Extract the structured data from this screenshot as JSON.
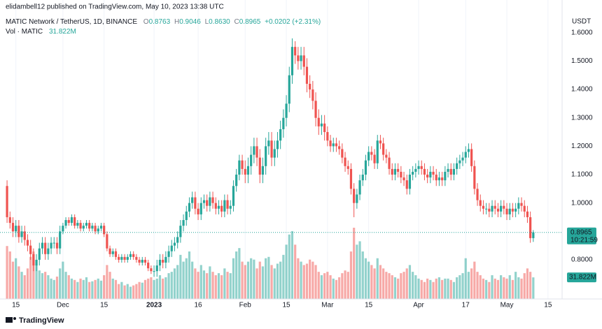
{
  "header": {
    "publisher": "elidambell12 published on TradingView.com, May 10, 2023 13:38 UTC",
    "symbol": "MATIC Network / TetherUS, 1D, BINANCE",
    "ohlc": [
      {
        "key": "O",
        "value": "0.8763"
      },
      {
        "key": "H",
        "value": "0.9046"
      },
      {
        "key": "L",
        "value": "0.8630"
      },
      {
        "key": "C",
        "value": "0.8965"
      }
    ],
    "change": "+0.0202 (+2.31%)",
    "volume_title": "Vol · MATIC"
  },
  "chart_data": {
    "type": "candlestick",
    "currency": "USDT",
    "up_color": "#26a69a",
    "down_color": "#ef5350",
    "grid": true,
    "open": [
      1.06,
      0.95,
      0.93,
      0.9,
      0.92,
      0.88,
      0.9,
      0.87,
      0.85,
      0.82,
      0.78,
      0.8,
      0.84,
      0.86,
      0.82,
      0.84,
      0.86,
      0.86,
      0.84,
      0.9,
      0.92,
      0.94,
      0.93,
      0.95,
      0.92,
      0.93,
      0.91,
      0.92,
      0.93,
      0.91,
      0.92,
      0.9,
      0.91,
      0.92,
      0.89,
      0.84,
      0.82,
      0.83,
      0.81,
      0.8,
      0.81,
      0.8,
      0.81,
      0.82,
      0.81,
      0.8,
      0.79,
      0.8,
      0.79,
      0.77,
      0.76,
      0.76,
      0.78,
      0.8,
      0.79,
      0.81,
      0.83,
      0.85,
      0.86,
      0.88,
      0.92,
      0.94,
      0.97,
      1.0,
      1.02,
      0.98,
      0.96,
      1.0,
      1.01,
      0.99,
      1.02,
      1.0,
      0.98,
      0.99,
      0.97,
      1.01,
      0.98,
      0.99,
      1.06,
      1.1,
      1.15,
      1.12,
      1.1,
      1.13,
      1.17,
      1.2,
      1.16,
      1.1,
      1.13,
      1.2,
      1.22,
      1.16,
      1.19,
      1.22,
      1.26,
      1.3,
      1.35,
      1.45,
      1.55,
      1.52,
      1.5,
      1.52,
      1.48,
      1.42,
      1.4,
      1.36,
      1.3,
      1.27,
      1.28,
      1.25,
      1.22,
      1.2,
      1.21,
      1.2,
      1.19,
      1.16,
      1.13,
      1.12,
      1.05,
      1.0,
      1.03,
      1.08,
      1.1,
      1.15,
      1.18,
      1.17,
      1.14,
      1.22,
      1.21,
      1.17,
      1.16,
      1.12,
      1.1,
      1.12,
      1.11,
      1.09,
      1.08,
      1.05,
      1.1,
      1.11,
      1.12,
      1.13,
      1.12,
      1.1,
      1.09,
      1.11,
      1.1,
      1.08,
      1.09,
      1.08,
      1.11,
      1.12,
      1.1,
      1.12,
      1.14,
      1.15,
      1.16,
      1.18,
      1.19,
      1.13,
      1.05,
      1.01,
      0.99,
      0.98,
      0.98,
      0.97,
      0.99,
      0.98,
      0.97,
      0.99,
      0.98,
      0.96,
      0.98,
      0.97,
      0.98,
      1.0,
      0.99,
      0.97,
      0.95,
      0.8763
    ],
    "high": [
      1.08,
      0.97,
      0.95,
      0.94,
      0.94,
      0.92,
      0.92,
      0.89,
      0.87,
      0.84,
      0.82,
      0.86,
      0.88,
      0.88,
      0.86,
      0.88,
      0.88,
      0.88,
      0.92,
      0.93,
      0.95,
      0.95,
      0.96,
      0.96,
      0.94,
      0.94,
      0.93,
      0.94,
      0.94,
      0.93,
      0.93,
      0.92,
      0.93,
      0.93,
      0.9,
      0.85,
      0.84,
      0.84,
      0.82,
      0.82,
      0.82,
      0.82,
      0.83,
      0.83,
      0.82,
      0.81,
      0.81,
      0.81,
      0.8,
      0.78,
      0.78,
      0.8,
      0.82,
      0.82,
      0.83,
      0.85,
      0.87,
      0.88,
      0.9,
      0.94,
      0.96,
      0.99,
      1.02,
      1.04,
      1.04,
      1.0,
      1.02,
      1.03,
      1.03,
      1.04,
      1.04,
      1.02,
      1.01,
      1.01,
      1.03,
      1.03,
      1.01,
      1.08,
      1.12,
      1.17,
      1.17,
      1.15,
      1.16,
      1.2,
      1.23,
      1.23,
      1.19,
      1.16,
      1.23,
      1.25,
      1.25,
      1.22,
      1.25,
      1.29,
      1.33,
      1.38,
      1.48,
      1.58,
      1.57,
      1.55,
      1.55,
      1.55,
      1.51,
      1.45,
      1.43,
      1.39,
      1.33,
      1.31,
      1.31,
      1.27,
      1.24,
      1.23,
      1.23,
      1.22,
      1.21,
      1.18,
      1.15,
      1.14,
      1.07,
      1.05,
      1.1,
      1.12,
      1.17,
      1.2,
      1.2,
      1.19,
      1.24,
      1.24,
      1.23,
      1.19,
      1.18,
      1.14,
      1.14,
      1.14,
      1.13,
      1.11,
      1.1,
      1.12,
      1.13,
      1.14,
      1.15,
      1.15,
      1.14,
      1.12,
      1.13,
      1.13,
      1.12,
      1.11,
      1.11,
      1.13,
      1.14,
      1.14,
      1.14,
      1.16,
      1.17,
      1.18,
      1.2,
      1.21,
      1.21,
      1.15,
      1.07,
      1.03,
      1.01,
      1.0,
      1.0,
      1.01,
      1.01,
      1.0,
      1.01,
      1.01,
      1.0,
      1.0,
      1.0,
      1.0,
      1.02,
      1.02,
      1.01,
      0.99,
      0.97,
      0.9046
    ],
    "low": [
      0.93,
      0.91,
      0.88,
      0.88,
      0.86,
      0.86,
      0.85,
      0.83,
      0.8,
      0.76,
      0.76,
      0.78,
      0.82,
      0.8,
      0.8,
      0.82,
      0.84,
      0.82,
      0.82,
      0.89,
      0.91,
      0.92,
      0.92,
      0.91,
      0.91,
      0.9,
      0.9,
      0.91,
      0.9,
      0.9,
      0.89,
      0.89,
      0.9,
      0.88,
      0.83,
      0.81,
      0.81,
      0.8,
      0.79,
      0.79,
      0.79,
      0.79,
      0.8,
      0.8,
      0.79,
      0.78,
      0.78,
      0.78,
      0.76,
      0.75,
      0.74,
      0.74,
      0.76,
      0.77,
      0.77,
      0.79,
      0.81,
      0.83,
      0.84,
      0.86,
      0.9,
      0.92,
      0.95,
      0.98,
      0.96,
      0.94,
      0.94,
      0.98,
      0.97,
      0.97,
      0.98,
      0.96,
      0.96,
      0.95,
      0.95,
      0.96,
      0.96,
      0.97,
      1.04,
      1.08,
      1.1,
      1.07,
      1.07,
      1.1,
      1.14,
      1.13,
      1.07,
      1.07,
      1.1,
      1.17,
      1.13,
      1.13,
      1.16,
      1.19,
      1.23,
      1.27,
      1.32,
      1.42,
      1.49,
      1.47,
      1.47,
      1.45,
      1.39,
      1.37,
      1.33,
      1.27,
      1.24,
      1.24,
      1.22,
      1.2,
      1.18,
      1.18,
      1.18,
      1.17,
      1.14,
      1.11,
      1.1,
      1.03,
      0.95,
      0.98,
      1.01,
      1.06,
      1.08,
      1.13,
      1.15,
      1.12,
      1.12,
      1.19,
      1.15,
      1.14,
      1.1,
      1.08,
      1.08,
      1.09,
      1.07,
      1.06,
      1.03,
      1.03,
      1.08,
      1.09,
      1.1,
      1.1,
      1.08,
      1.07,
      1.07,
      1.08,
      1.06,
      1.06,
      1.06,
      1.06,
      1.09,
      1.08,
      1.08,
      1.1,
      1.12,
      1.13,
      1.14,
      1.16,
      1.11,
      1.03,
      0.99,
      0.97,
      0.96,
      0.96,
      0.95,
      0.95,
      0.96,
      0.95,
      0.95,
      0.96,
      0.94,
      0.94,
      0.95,
      0.95,
      0.96,
      0.97,
      0.95,
      0.93,
      0.86,
      0.863
    ],
    "close": [
      0.95,
      0.93,
      0.9,
      0.92,
      0.88,
      0.9,
      0.87,
      0.85,
      0.82,
      0.78,
      0.8,
      0.84,
      0.86,
      0.82,
      0.84,
      0.86,
      0.86,
      0.84,
      0.9,
      0.92,
      0.94,
      0.93,
      0.95,
      0.92,
      0.93,
      0.91,
      0.92,
      0.93,
      0.91,
      0.92,
      0.9,
      0.91,
      0.92,
      0.89,
      0.84,
      0.82,
      0.83,
      0.81,
      0.8,
      0.81,
      0.8,
      0.81,
      0.82,
      0.81,
      0.8,
      0.79,
      0.8,
      0.79,
      0.77,
      0.76,
      0.76,
      0.78,
      0.8,
      0.79,
      0.81,
      0.83,
      0.85,
      0.86,
      0.88,
      0.92,
      0.94,
      0.97,
      1.0,
      1.02,
      0.98,
      0.96,
      1.0,
      1.01,
      0.99,
      1.02,
      1.0,
      0.98,
      0.99,
      0.97,
      1.01,
      0.98,
      0.99,
      1.06,
      1.1,
      1.15,
      1.12,
      1.1,
      1.13,
      1.17,
      1.2,
      1.16,
      1.1,
      1.13,
      1.2,
      1.22,
      1.16,
      1.19,
      1.22,
      1.26,
      1.3,
      1.35,
      1.45,
      1.55,
      1.52,
      1.5,
      1.52,
      1.48,
      1.42,
      1.4,
      1.36,
      1.3,
      1.27,
      1.28,
      1.25,
      1.22,
      1.2,
      1.21,
      1.2,
      1.19,
      1.16,
      1.13,
      1.12,
      1.05,
      1.0,
      1.03,
      1.08,
      1.1,
      1.15,
      1.18,
      1.17,
      1.14,
      1.22,
      1.21,
      1.17,
      1.16,
      1.12,
      1.1,
      1.12,
      1.11,
      1.09,
      1.08,
      1.05,
      1.1,
      1.11,
      1.12,
      1.13,
      1.12,
      1.1,
      1.09,
      1.11,
      1.1,
      1.08,
      1.09,
      1.08,
      1.11,
      1.12,
      1.1,
      1.12,
      1.14,
      1.15,
      1.16,
      1.18,
      1.19,
      1.13,
      1.05,
      1.01,
      0.99,
      0.98,
      0.98,
      0.97,
      0.99,
      0.98,
      0.97,
      0.99,
      0.98,
      0.96,
      0.98,
      0.97,
      0.98,
      1.0,
      0.99,
      0.97,
      0.95,
      0.8763,
      0.8965
    ],
    "volume": [
      78,
      70,
      55,
      60,
      48,
      40,
      35,
      45,
      62,
      70,
      50,
      42,
      38,
      40,
      35,
      30,
      28,
      33,
      45,
      55,
      40,
      35,
      30,
      28,
      25,
      30,
      28,
      32,
      25,
      26,
      28,
      30,
      27,
      35,
      50,
      40,
      30,
      28,
      22,
      25,
      20,
      22,
      18,
      20,
      22,
      25,
      24,
      28,
      30,
      32,
      28,
      30,
      35,
      30,
      32,
      38,
      40,
      45,
      50,
      65,
      55,
      60,
      70,
      55,
      45,
      40,
      50,
      42,
      38,
      48,
      40,
      35,
      38,
      35,
      45,
      40,
      38,
      60,
      70,
      75,
      55,
      50,
      55,
      60,
      58,
      45,
      55,
      48,
      60,
      62,
      50,
      45,
      52,
      55,
      65,
      80,
      95,
      100,
      80,
      60,
      55,
      50,
      52,
      58,
      55,
      50,
      40,
      35,
      38,
      40,
      35,
      30,
      28,
      32,
      38,
      42,
      40,
      70,
      105,
      80,
      85,
      70,
      60,
      55,
      50,
      45,
      60,
      50,
      45,
      40,
      38,
      35,
      32,
      30,
      38,
      40,
      45,
      50,
      40,
      35,
      30,
      28,
      25,
      30,
      28,
      25,
      30,
      32,
      28,
      30,
      30,
      28,
      25,
      32,
      35,
      38,
      60,
      40,
      45,
      55,
      40,
      35,
      30,
      28,
      25,
      35,
      30,
      28,
      35,
      32,
      30,
      35,
      28,
      40,
      32,
      30,
      38,
      45,
      40,
      31.822
    ],
    "volume_label": "31.822M",
    "last_price_label": "0.8965",
    "countdown": "10:21:59",
    "xlim": [
      -2.4,
      188.8
    ],
    "xticks": [
      {
        "value": 3,
        "label": "15"
      },
      {
        "value": 19,
        "label": "Dec"
      },
      {
        "value": 33,
        "label": "15"
      },
      {
        "value": 50,
        "label": "2023"
      },
      {
        "value": 65,
        "label": "16"
      },
      {
        "value": 81,
        "label": "Feb"
      },
      {
        "value": 95,
        "label": "15"
      },
      {
        "value": 109,
        "label": "Mar"
      },
      {
        "value": 123,
        "label": "15"
      },
      {
        "value": 140,
        "label": "Apr"
      },
      {
        "value": 156,
        "label": "17"
      },
      {
        "value": 170,
        "label": "May"
      },
      {
        "value": 184,
        "label": "15"
      }
    ],
    "ylim": [
      0.662,
      1.666
    ],
    "yticks": [
      {
        "value": 0.8,
        "label": "0.8000"
      },
      {
        "value": 0.9,
        "label": "0.9000"
      },
      {
        "value": 1.0,
        "label": "1.0000"
      },
      {
        "value": 1.1,
        "label": "1.1000"
      },
      {
        "value": 1.2,
        "label": "1.2000"
      },
      {
        "value": 1.3,
        "label": "1.3000"
      },
      {
        "value": 1.4,
        "label": "1.4000"
      },
      {
        "value": 1.5,
        "label": "1.5000"
      },
      {
        "value": 1.6,
        "label": "1.6000"
      }
    ]
  },
  "footer": {
    "brand": "TradingView"
  }
}
